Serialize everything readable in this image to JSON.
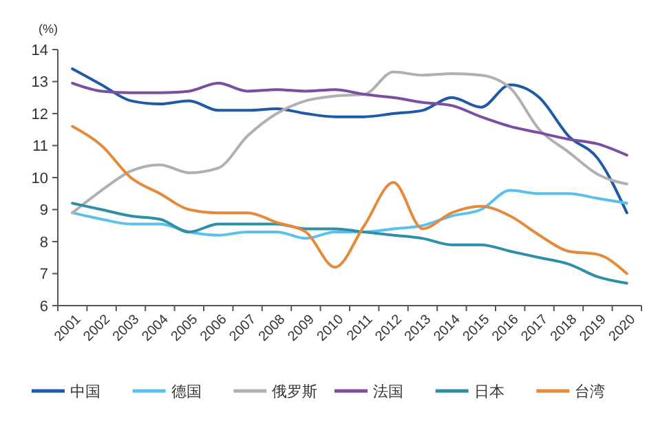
{
  "chart_data": {
    "type": "line",
    "ylabel": "(%)",
    "categories": [
      "2001",
      "2002",
      "2003",
      "2004",
      "2005",
      "2006",
      "2007",
      "2008",
      "2009",
      "2010",
      "2011",
      "2012",
      "2013",
      "2014",
      "2015",
      "2016",
      "2017",
      "2018",
      "2019",
      "2020"
    ],
    "ylim": [
      6,
      14
    ],
    "yticks": [
      6,
      7,
      8,
      9,
      10,
      11,
      12,
      13,
      14
    ],
    "grid": false,
    "legend": "bottom",
    "marker": "none",
    "line_style": "solid",
    "series": [
      {
        "name": "中国",
        "color": "#1f5aa6",
        "values": [
          13.4,
          12.9,
          12.4,
          12.3,
          12.4,
          12.1,
          12.1,
          12.15,
          12.0,
          11.9,
          11.9,
          12.0,
          12.1,
          12.5,
          12.2,
          12.9,
          12.5,
          11.3,
          10.6,
          8.9
        ]
      },
      {
        "name": "德国",
        "color": "#5bc0eb",
        "values": [
          8.9,
          8.7,
          8.55,
          8.55,
          8.3,
          8.2,
          8.3,
          8.3,
          8.1,
          8.3,
          8.3,
          8.4,
          8.5,
          8.8,
          9.0,
          9.6,
          9.5,
          9.5,
          9.35,
          9.2
        ]
      },
      {
        "name": "俄罗斯",
        "color": "#b0b0b0",
        "values": [
          8.9,
          9.6,
          10.2,
          10.4,
          10.15,
          10.3,
          11.3,
          12.0,
          12.4,
          12.55,
          12.6,
          13.3,
          13.2,
          13.25,
          13.2,
          12.8,
          11.5,
          10.8,
          10.1,
          9.8
        ]
      },
      {
        "name": "法国",
        "color": "#7a4fa0",
        "values": [
          12.95,
          12.7,
          12.65,
          12.65,
          12.7,
          12.95,
          12.7,
          12.75,
          12.7,
          12.75,
          12.6,
          12.5,
          12.35,
          12.25,
          11.9,
          11.6,
          11.4,
          11.2,
          11.05,
          10.7
        ]
      },
      {
        "name": "日本",
        "color": "#2f8fa8",
        "values": [
          9.2,
          9.0,
          8.8,
          8.7,
          8.3,
          8.55,
          8.55,
          8.55,
          8.4,
          8.4,
          8.3,
          8.2,
          8.1,
          7.9,
          7.9,
          7.7,
          7.5,
          7.3,
          6.9,
          6.7
        ]
      },
      {
        "name": "台湾",
        "color": "#e58a3a",
        "values": [
          11.6,
          11.0,
          10.0,
          9.5,
          9.0,
          8.9,
          8.9,
          8.6,
          8.3,
          7.2,
          8.5,
          9.85,
          8.4,
          8.9,
          9.1,
          8.8,
          8.2,
          7.7,
          7.6,
          7.0
        ]
      }
    ]
  }
}
